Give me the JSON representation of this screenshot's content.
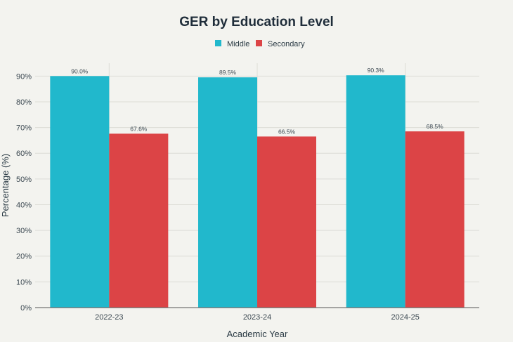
{
  "chart_data": {
    "type": "bar",
    "title": "GER by Education Level",
    "xlabel": "Academic Year",
    "ylabel": "Percentage (%)",
    "categories": [
      "2022-23",
      "2023-24",
      "2024-25"
    ],
    "series": [
      {
        "name": "Middle",
        "values": [
          90.0,
          89.5,
          90.3
        ],
        "labels": [
          "90.0%",
          "89.5%",
          "90.3%"
        ],
        "color": "#21b8cc"
      },
      {
        "name": "Secondary",
        "values": [
          67.6,
          66.5,
          68.5
        ],
        "labels": [
          "67.6%",
          "66.5%",
          "68.5%"
        ],
        "color": "#dc4446"
      }
    ],
    "ylim": [
      0,
      95
    ],
    "yticks": [
      0,
      10,
      20,
      30,
      40,
      50,
      60,
      70,
      80,
      90
    ],
    "ytick_labels": [
      "0%",
      "10%",
      "20%",
      "30%",
      "40%",
      "50%",
      "60%",
      "70%",
      "80%",
      "90%"
    ],
    "grid": true,
    "legend_position": "top-center"
  }
}
